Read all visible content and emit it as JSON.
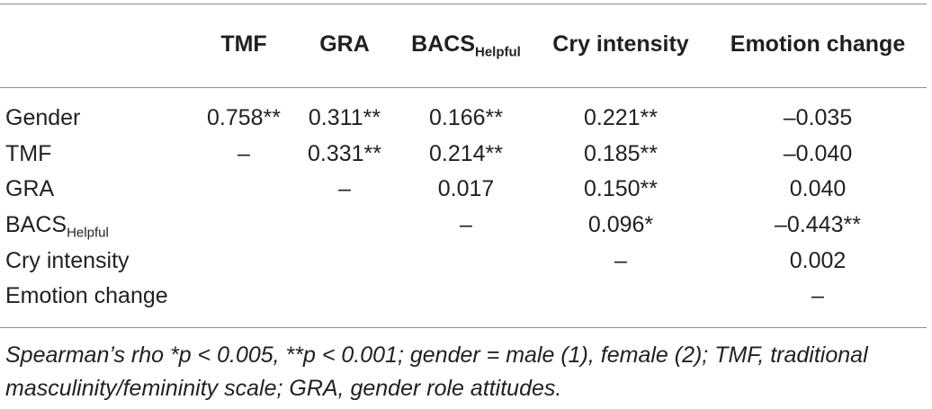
{
  "table": {
    "columns": [
      {
        "label": "TMF",
        "sub": ""
      },
      {
        "label": "GRA",
        "sub": ""
      },
      {
        "label": "BACS",
        "sub": "Helpful"
      },
      {
        "label": "Cry intensity",
        "sub": ""
      },
      {
        "label": "Emotion change",
        "sub": ""
      }
    ],
    "rows": [
      {
        "label": "Gender",
        "sub": "",
        "cells": [
          "0.758**",
          "0.311**",
          "0.166**",
          "0.221**",
          "–0.035"
        ]
      },
      {
        "label": "TMF",
        "sub": "",
        "cells": [
          "–",
          "0.331**",
          "0.214**",
          "0.185**",
          "–0.040"
        ]
      },
      {
        "label": "GRA",
        "sub": "",
        "cells": [
          "",
          "–",
          "0.017",
          "0.150**",
          "0.040"
        ]
      },
      {
        "label": "BACS",
        "sub": "Helpful",
        "cells": [
          "",
          "",
          "–",
          "0.096*",
          "–0.443**"
        ]
      },
      {
        "label": "Cry intensity",
        "sub": "",
        "cells": [
          "",
          "",
          "",
          "–",
          "0.002"
        ]
      },
      {
        "label": "Emotion change",
        "sub": "",
        "cells": [
          "",
          "",
          "",
          "",
          "–"
        ]
      }
    ]
  },
  "note": "Spearman’s rho *p < 0.005, **p < 0.001; gender = male (1), female (2); TMF, traditional masculinity/femininity scale; GRA, gender role attitudes."
}
